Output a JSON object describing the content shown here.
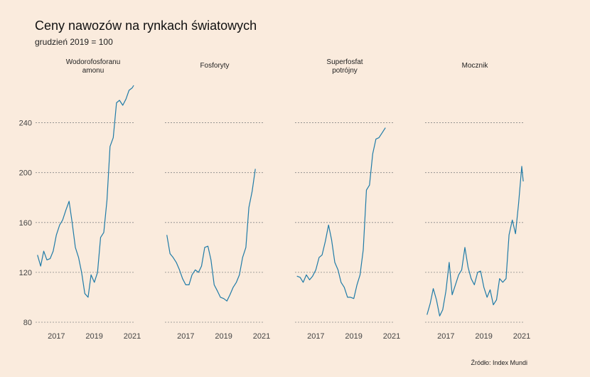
{
  "header": {
    "title": "Ceny nawozów na rynkach światowych",
    "subtitle": "grudzień 2019 = 100"
  },
  "footer": {
    "source": "Źródło: Index Mundi"
  },
  "colors": {
    "background": "#faebdd",
    "line": "#1f7ba7",
    "grid": "#888888"
  },
  "chart_data": {
    "type": "line",
    "layout": "small-multiples",
    "ylim": [
      80,
      270
    ],
    "yticks": [
      80,
      120,
      160,
      200,
      240
    ],
    "xticks": [
      2017,
      2019,
      2021
    ],
    "grid": "horizontal dotted",
    "series": [
      {
        "name": "Wodorofosforanu\namonu",
        "x": [
          2016.0,
          2016.17,
          2016.33,
          2016.5,
          2016.67,
          2016.83,
          2017.0,
          2017.17,
          2017.33,
          2017.5,
          2017.67,
          2017.83,
          2018.0,
          2018.17,
          2018.33,
          2018.5,
          2018.67,
          2018.83,
          2019.0,
          2019.17,
          2019.33,
          2019.5,
          2019.67,
          2019.83,
          2020.0,
          2020.17,
          2020.33,
          2020.5,
          2020.67,
          2020.83,
          2021.0,
          2021.08
        ],
        "values": [
          134,
          125,
          137,
          130,
          131,
          137,
          150,
          158,
          162,
          170,
          177,
          160,
          140,
          132,
          120,
          103,
          100,
          118,
          112,
          120,
          148,
          152,
          178,
          221,
          228,
          256,
          258,
          254,
          259,
          266,
          268,
          270
        ]
      },
      {
        "name": "Fosforyty",
        "x": [
          2016.0,
          2016.17,
          2016.33,
          2016.5,
          2016.67,
          2016.83,
          2017.0,
          2017.17,
          2017.33,
          2017.5,
          2017.67,
          2017.83,
          2018.0,
          2018.17,
          2018.33,
          2018.5,
          2018.67,
          2018.83,
          2019.0,
          2019.17,
          2019.33,
          2019.5,
          2019.67,
          2019.83,
          2020.0,
          2020.17,
          2020.33,
          2020.5,
          2020.67
        ],
        "values": [
          150,
          135,
          132,
          128,
          122,
          115,
          110,
          110,
          118,
          122,
          120,
          125,
          140,
          141,
          130,
          110,
          105,
          100,
          99,
          97,
          102,
          108,
          112,
          118,
          132,
          140,
          172,
          185,
          203
        ]
      },
      {
        "name": "Superfosfat\npotrójny",
        "x": [
          2016.0,
          2016.17,
          2016.33,
          2016.5,
          2016.67,
          2016.83,
          2017.0,
          2017.17,
          2017.33,
          2017.5,
          2017.67,
          2017.83,
          2018.0,
          2018.17,
          2018.33,
          2018.5,
          2018.67,
          2018.83,
          2019.0,
          2019.17,
          2019.33,
          2019.5,
          2019.67,
          2019.83,
          2020.0,
          2020.17,
          2020.33,
          2020.5,
          2020.67
        ],
        "values": [
          117,
          116,
          112,
          118,
          114,
          117,
          122,
          132,
          134,
          145,
          158,
          146,
          128,
          122,
          112,
          108,
          100,
          100,
          99,
          110,
          118,
          138,
          186,
          190,
          215,
          227,
          228,
          232,
          236
        ]
      },
      {
        "name": "Mocznik",
        "x": [
          2016.0,
          2016.17,
          2016.33,
          2016.5,
          2016.67,
          2016.83,
          2017.0,
          2017.17,
          2017.33,
          2017.5,
          2017.67,
          2017.83,
          2018.0,
          2018.17,
          2018.33,
          2018.5,
          2018.67,
          2018.83,
          2019.0,
          2019.17,
          2019.33,
          2019.5,
          2019.67,
          2019.83,
          2020.0,
          2020.17,
          2020.33,
          2020.5,
          2020.67,
          2020.83,
          2021.0,
          2021.08
        ],
        "values": [
          86,
          95,
          107,
          98,
          85,
          90,
          105,
          128,
          102,
          110,
          118,
          122,
          140,
          124,
          115,
          110,
          120,
          121,
          108,
          100,
          106,
          94,
          98,
          115,
          112,
          115,
          150,
          162,
          151,
          175,
          205,
          193
        ]
      }
    ]
  }
}
